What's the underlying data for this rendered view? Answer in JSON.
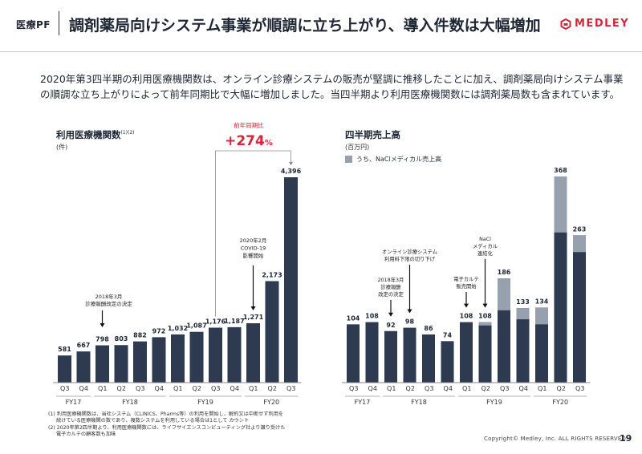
{
  "header": {
    "section": "医療PF",
    "title": "調剤薬局向けシステム事業が順調に立ち上がり、導入件数は大幅増加",
    "logo_text": "MEDLEY"
  },
  "intro": {
    "line1": "2020年第3四半期の利用医療機関数は、オンライン診療システムの販売が堅調に推移したことに加え、調剤薬局向けシステム事業",
    "line2": "の順調な立ち上がりによって前年同期比で大幅に増加しました。当四半期より利用医療機関数には調剤薬局数も含まれています。"
  },
  "colors": {
    "bar": "#2d3a4f",
    "nacl": "#97a0ad",
    "accent": "#d2283a"
  },
  "chart_data": [
    {
      "type": "bar",
      "title": "利用医療機関数",
      "title_note": "(1)(2)",
      "unit": "(件)",
      "categories": [
        "Q3",
        "Q4",
        "Q1",
        "Q2",
        "Q3",
        "Q4",
        "Q1",
        "Q2",
        "Q3",
        "Q4",
        "Q1",
        "Q2",
        "Q3"
      ],
      "year_groups": [
        {
          "label": "FY17",
          "count": 2
        },
        {
          "label": "FY18",
          "count": 4
        },
        {
          "label": "FY19",
          "count": 4
        },
        {
          "label": "FY20",
          "count": 3
        }
      ],
      "values": [
        581,
        667,
        798,
        803,
        882,
        972,
        1032,
        1087,
        1176,
        1187,
        1271,
        2173,
        4396
      ],
      "value_labels": [
        "581",
        "667",
        "798",
        "803",
        "882",
        "972",
        "1,032",
        "1,087",
        "1,176",
        "1,187",
        "1,271",
        "2,173",
        "4,396"
      ],
      "ylim": [
        0,
        4800
      ],
      "growth": {
        "label": "前年同期比",
        "value": "+274",
        "suffix": "%",
        "from_index": 8,
        "to_index": 12
      },
      "annotations": [
        {
          "index": 2,
          "lines": [
            "2018年3月",
            "診療報酬改定の決定"
          ]
        },
        {
          "index": 10,
          "lines": [
            "2020年2月",
            "COVID-19",
            "影響開始"
          ]
        }
      ]
    },
    {
      "type": "bar",
      "title": "四半期売上高",
      "unit": "(百万円)",
      "legend": "うち、NaClメディカル売上高",
      "categories": [
        "Q3",
        "Q4",
        "Q1",
        "Q2",
        "Q3",
        "Q4",
        "Q1",
        "Q2",
        "Q3",
        "Q4",
        "Q1",
        "Q2",
        "Q3"
      ],
      "year_groups": [
        {
          "label": "FY17",
          "count": 2
        },
        {
          "label": "FY18",
          "count": 4
        },
        {
          "label": "FY19",
          "count": 4
        },
        {
          "label": "FY20",
          "count": 3
        }
      ],
      "series": [
        {
          "name": "total",
          "values": [
            104,
            108,
            92,
            98,
            86,
            74,
            108,
            108,
            186,
            133,
            134,
            368,
            263
          ]
        },
        {
          "name": "うち、NaClメディカル売上高",
          "values": [
            0,
            0,
            0,
            0,
            0,
            0,
            0,
            6,
            57,
            20,
            30,
            100,
            30
          ]
        }
      ],
      "ylim": [
        0,
        400
      ],
      "annotations": [
        {
          "index": 2,
          "lines": [
            "2018年3月",
            "診療報酬",
            "改定の決定"
          ]
        },
        {
          "index": 3,
          "lines": [
            "オンライン診療システム",
            "利用料下限の切り下げ"
          ]
        },
        {
          "index": 6,
          "lines": [
            "電子カルテ",
            "販売開始"
          ]
        },
        {
          "index": 7,
          "lines": [
            "NaCl",
            "メディカル",
            "連結化"
          ]
        }
      ]
    }
  ],
  "footnotes": {
    "n1a": "(1) 利用医療機関数は、当社システム（CLINICS、Pharms等）の利用を開始し、解約又は中断せず利用を",
    "n1b": "続けている医療機関の数であり、複数システムを利用している場合は1として カウント",
    "n2a": "(2) 2020年第2四半期より、利用医療機関数には、ライフサイエンスコンピューティング社より譲り受けた",
    "n2b": "電子カルテの顧客数も加味"
  },
  "footer": {
    "copyright": "Copyright© Medley, Inc. ALL RIGHTS RESERVED.",
    "page": "19"
  }
}
